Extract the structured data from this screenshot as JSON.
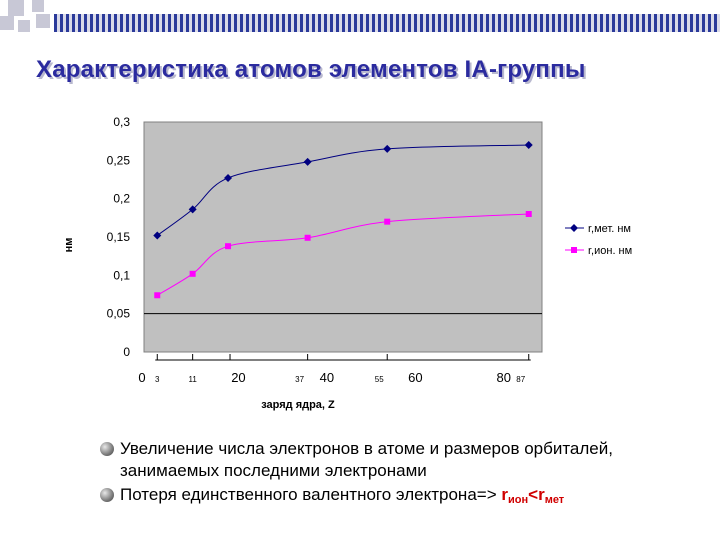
{
  "slide": {
    "title": "Характеристика атомов элементов IА-группы",
    "colors": {
      "title": "#2b2b9f",
      "deco_blue": "#2b3a9a",
      "deco_grey": "#c8c8d6",
      "highlight": "#d00000"
    }
  },
  "chart_data": {
    "type": "line",
    "title": "",
    "xlabel": "заряд ядра, Z",
    "ylabel": "нм",
    "xlim": [
      0,
      90
    ],
    "ylim": [
      0,
      0.3
    ],
    "y_ticks": [
      "0",
      "0,05",
      "0,1",
      "0,15",
      "0,2",
      "0,25",
      "0,3"
    ],
    "x_ticks": [
      "0",
      "20",
      "40",
      "60",
      "80"
    ],
    "point_labels": [
      "3",
      "11",
      "37",
      "55",
      "87"
    ],
    "plot_background": "#c0c0c0",
    "grid": "horizontal line at 0.05",
    "legend_position": "right",
    "x": [
      3,
      11,
      19,
      37,
      55,
      87
    ],
    "series": [
      {
        "name": "r,мет. нм",
        "color": "#000080",
        "marker": "diamond",
        "values": [
          0.152,
          0.186,
          0.227,
          0.248,
          0.265,
          0.27
        ]
      },
      {
        "name": "r,ион. нм",
        "color": "#ff00ff",
        "marker": "square",
        "values": [
          0.074,
          0.102,
          0.138,
          0.149,
          0.17,
          0.18
        ]
      }
    ]
  },
  "bullets": [
    {
      "text": "Увеличение числа электронов в атоме и размеров орбиталей, занимаемых последними электронами"
    },
    {
      "text": "Потеря единственного валентного электрона=> ",
      "formula": {
        "r1": "r",
        "sub1": "ион",
        "op": "<",
        "r2": "r",
        "sub2": "мет"
      }
    }
  ]
}
